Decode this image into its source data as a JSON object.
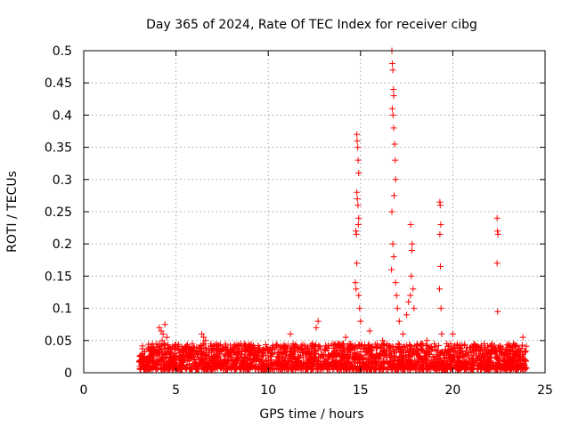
{
  "chart_data": {
    "type": "scatter",
    "title": "Day 365 of 2024, Rate Of TEC Index for receiver cibg",
    "xlabel": "GPS time / hours",
    "ylabel": "ROTI / TECUs",
    "xlim": [
      0,
      25
    ],
    "ylim": [
      0,
      0.5
    ],
    "xticks": [
      "0",
      "5",
      "10",
      "15",
      "20",
      "25"
    ],
    "yticks": [
      "0",
      "0.05",
      "0.1",
      "0.15",
      "0.2",
      "0.25",
      "0.3",
      "0.35",
      "0.4",
      "0.45",
      "0.5"
    ],
    "grid": true,
    "marker": "+",
    "color": "#ff0000",
    "series": [
      {
        "name": "ROTI",
        "x": [
          14.8,
          14.82,
          14.85,
          14.87,
          14.9,
          14.8,
          14.83,
          14.86,
          14.9,
          14.88,
          14.75,
          14.78,
          14.8,
          14.72,
          14.76,
          14.9,
          14.95,
          15.0,
          16.7,
          16.72,
          16.75,
          16.78,
          16.8,
          16.72,
          16.76,
          16.8,
          16.85,
          16.88,
          16.9,
          16.82,
          16.7,
          16.75,
          16.8,
          16.68,
          16.9,
          16.95,
          17.0,
          17.1,
          17.5,
          17.6,
          17.7,
          17.75,
          17.8,
          17.72,
          17.78,
          17.85,
          17.9,
          19.3,
          19.32,
          19.35,
          19.3,
          19.33,
          19.28,
          19.36,
          19.4,
          22.4,
          22.42,
          22.45,
          22.4,
          22.43,
          4.1,
          4.2,
          4.3,
          4.4,
          4.5,
          4.25,
          4.35,
          6.4,
          6.5,
          6.6,
          11.2,
          12.6,
          12.7,
          14.2,
          15.5,
          16.2,
          17.3,
          18.3,
          18.6,
          20.0,
          23.3,
          23.8
        ],
        "y": [
          0.37,
          0.36,
          0.35,
          0.33,
          0.31,
          0.28,
          0.27,
          0.26,
          0.24,
          0.23,
          0.22,
          0.215,
          0.17,
          0.14,
          0.13,
          0.12,
          0.1,
          0.08,
          0.5,
          0.48,
          0.47,
          0.44,
          0.43,
          0.41,
          0.4,
          0.38,
          0.355,
          0.33,
          0.3,
          0.275,
          0.25,
          0.2,
          0.18,
          0.16,
          0.14,
          0.12,
          0.1,
          0.08,
          0.09,
          0.11,
          0.12,
          0.15,
          0.2,
          0.23,
          0.19,
          0.13,
          0.1,
          0.265,
          0.26,
          0.23,
          0.215,
          0.165,
          0.13,
          0.1,
          0.06,
          0.24,
          0.22,
          0.215,
          0.17,
          0.095,
          0.07,
          0.065,
          0.06,
          0.075,
          0.055,
          0.05,
          0.045,
          0.06,
          0.055,
          0.05,
          0.06,
          0.07,
          0.08,
          0.055,
          0.065,
          0.05,
          0.06,
          0.045,
          0.05,
          0.06,
          0.045,
          0.055
        ]
      }
    ],
    "dense_band": {
      "x_range": [
        3.0,
        24.0
      ],
      "y_range": [
        0.005,
        0.045
      ],
      "count": 2600
    }
  }
}
